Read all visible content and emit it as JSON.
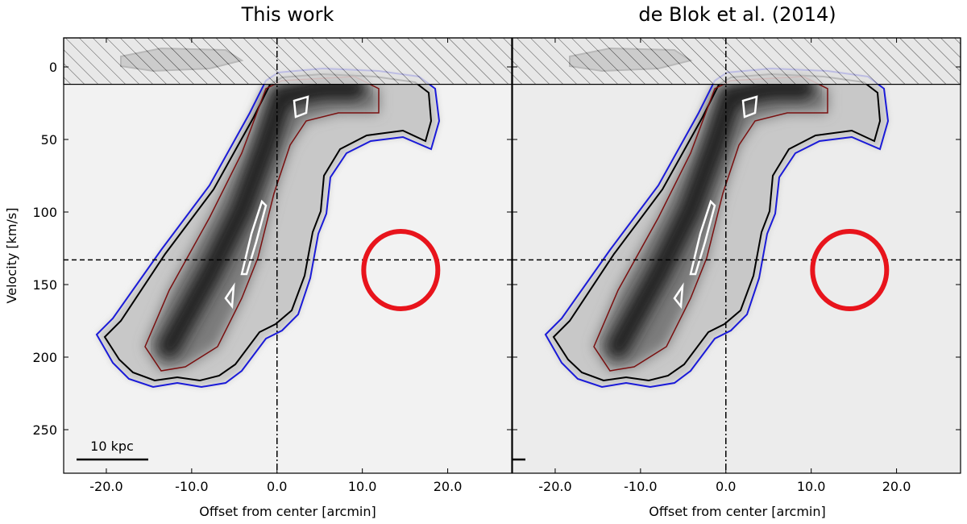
{
  "chart_data": [
    {
      "type": "image",
      "title": "This work",
      "xlabel": "Offset from center [arcmin]",
      "ylabel": "Velocity [km/s]",
      "xlim": [
        -25,
        27.5
      ],
      "ylim": [
        280,
        -20
      ],
      "xticks": [
        {
          "value": -20,
          "label": "-20.0"
        },
        {
          "value": -10,
          "label": "-10.0"
        },
        {
          "value": 0,
          "label": "0.0"
        },
        {
          "value": 10,
          "label": "10.0"
        },
        {
          "value": 20,
          "label": "20.0"
        }
      ],
      "yticks": [
        0,
        50,
        100,
        150,
        200,
        250
      ],
      "show_ytick_labels": true,
      "masked_range": [
        -20,
        12
      ],
      "hline": 133,
      "vline": 0,
      "circle": {
        "x": 14.5,
        "y": 140,
        "color": "#e8141c"
      },
      "scalebar_label": "10 kpc"
    },
    {
      "type": "image",
      "title": "de Blok et al. (2014)",
      "xlabel": "Offset from center [arcmin]",
      "xlim": [
        -25,
        27.5
      ],
      "ylim": [
        280,
        -20
      ],
      "xticks": [
        {
          "value": -20,
          "label": "-20.0"
        },
        {
          "value": -10,
          "label": "-10.0"
        },
        {
          "value": 0,
          "label": "0.0"
        },
        {
          "value": 10,
          "label": "10.0"
        },
        {
          "value": 20,
          "label": "20.0"
        }
      ],
      "yticks": [
        0,
        50,
        100,
        150,
        200,
        250
      ],
      "show_ytick_labels": false,
      "masked_range": [
        -20,
        12
      ],
      "hline": 133,
      "vline": 0,
      "circle": {
        "x": 14.5,
        "y": 140,
        "color": "#e8141c"
      }
    }
  ]
}
